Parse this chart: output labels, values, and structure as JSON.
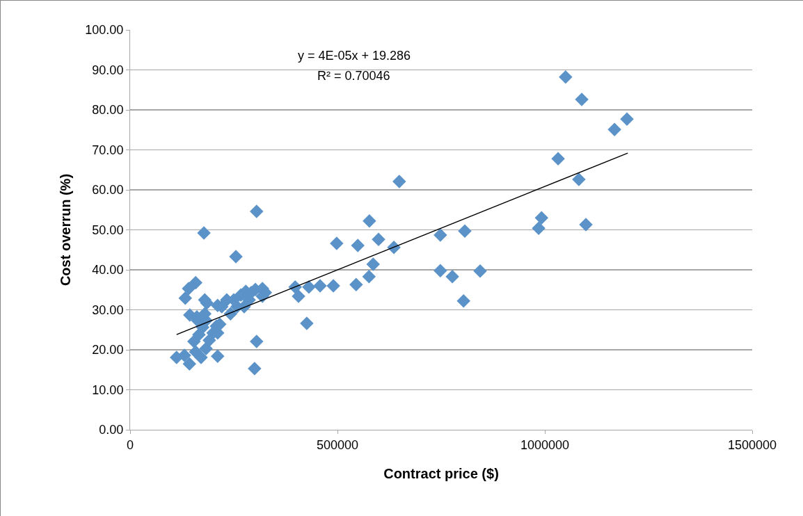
{
  "chart_data": {
    "type": "scatter",
    "xlabel": "Contract price ($)",
    "ylabel": "Cost overrun (%)",
    "annotations": [
      "y = 4E-05x + 19.286",
      "R² = 0.70046"
    ],
    "xlim": [
      0,
      1500000
    ],
    "xticks": [
      0,
      500000,
      1000000,
      1500000
    ],
    "ylim": [
      0,
      100
    ],
    "yticks": [
      {
        "value": 0,
        "label": "0.00"
      },
      {
        "value": 10,
        "label": "10.00"
      },
      {
        "value": 20,
        "label": "20.00"
      },
      {
        "value": 30,
        "label": "30.00"
      },
      {
        "value": 40,
        "label": "40.00"
      },
      {
        "value": 50,
        "label": "50.00"
      },
      {
        "value": 60,
        "label": "60.00"
      },
      {
        "value": 70,
        "label": "70.00"
      },
      {
        "value": 80,
        "label": "80.00"
      },
      {
        "value": 90,
        "label": "90.00"
      },
      {
        "value": 100,
        "label": "100.00"
      }
    ],
    "grid": "y",
    "marker": "diamond",
    "series": [
      {
        "color": "#5b93c9",
        "x": [
          112000,
          133000,
          141000,
          158000,
          144000,
          131000,
          143000,
          158000,
          154000,
          166000,
          175000,
          183000,
          161000,
          180000,
          180000,
          185000,
          178000,
          163000,
          171000,
          183000,
          191000,
          200000,
          208000,
          211000,
          216000,
          211000,
          221000,
          211000,
          233000,
          250000,
          242000,
          258000,
          255000,
          267000,
          279000,
          275000,
          292000,
          287000,
          302000,
          319000,
          319000,
          305000,
          305000,
          300000,
          326000,
          398000,
          406000,
          431000,
          458000,
          490000,
          426000,
          498000,
          549000,
          545000,
          577000,
          599000,
          586000,
          576000,
          636000,
          649000,
          748000,
          807000,
          748000,
          777000,
          844000,
          804000,
          1050000,
          1089000,
          1198000,
          1168000,
          1032000,
          1082000,
          992000,
          985000,
          1099000
        ],
        "values": [
          18.1,
          32.9,
          35.3,
          36.8,
          28.7,
          18.6,
          16.5,
          19.5,
          22.1,
          23.8,
          25.6,
          27.3,
          28.2,
          29.0,
          32.5,
          31.7,
          49.2,
          27.3,
          18.1,
          20.3,
          22.4,
          24.2,
          25.9,
          24.2,
          26.4,
          18.4,
          30.8,
          31.1,
          32.5,
          32.5,
          29.0,
          30.8,
          43.3,
          33.7,
          34.6,
          30.8,
          34.3,
          32.5,
          35.1,
          35.3,
          33.4,
          54.6,
          22.1,
          15.3,
          34.3,
          35.7,
          33.4,
          35.7,
          36.0,
          36.0,
          26.6,
          46.6,
          46.1,
          36.3,
          52.2,
          47.6,
          41.4,
          38.3,
          45.6,
          62.1,
          48.7,
          49.7,
          39.8,
          38.3,
          39.7,
          32.2,
          88.2,
          82.6,
          77.7,
          75.1,
          67.8,
          62.6,
          53.0,
          50.4,
          51.3
        ]
      },
      {
        "type": "line",
        "color": "#000000",
        "marker": "none",
        "line_style": "solid",
        "x": [
          112000,
          1200000
        ],
        "values": [
          23.8,
          69.2
        ]
      }
    ]
  }
}
